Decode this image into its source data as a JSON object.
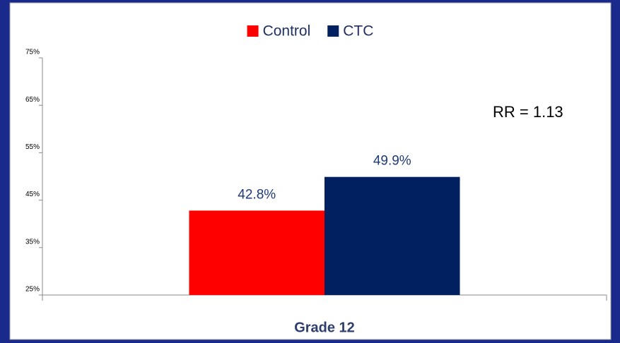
{
  "chart_data": {
    "type": "bar",
    "annotation": "RR = 1.13",
    "categories": [
      "Grade 12"
    ],
    "series": [
      {
        "name": "Control",
        "color": "#ff0000",
        "values": [
          42.8
        ],
        "value_labels": [
          "42.8%"
        ]
      },
      {
        "name": "CTC",
        "color": "#002060",
        "values": [
          49.9
        ],
        "value_labels": [
          "49.9%"
        ]
      }
    ],
    "ylim": [
      25,
      75
    ],
    "yticks": [
      {
        "value": 25,
        "label": "25%"
      },
      {
        "value": 35,
        "label": "35%"
      },
      {
        "value": 45,
        "label": "45%"
      },
      {
        "value": 55,
        "label": "55%"
      },
      {
        "value": 65,
        "label": "65%"
      },
      {
        "value": 75,
        "label": "75%"
      }
    ],
    "legend": "top"
  }
}
